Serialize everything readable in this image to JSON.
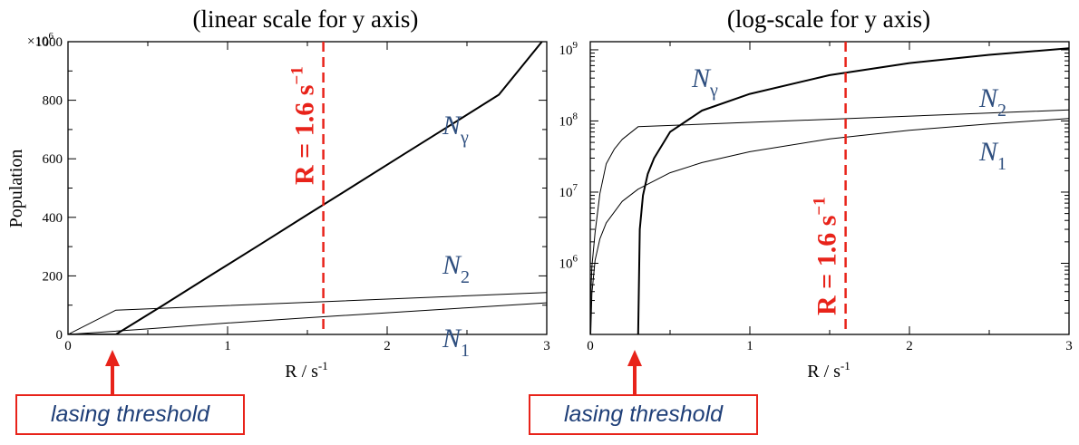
{
  "chart_data": [
    {
      "type": "line",
      "title": "(linear scale for y axis)",
      "xlabel": "R / s",
      "xlabel_sup": "-1",
      "ylabel": "Population",
      "y_multiplier": "×10",
      "y_multiplier_exp": "6",
      "yscale": "linear",
      "xlim": [
        0,
        3
      ],
      "ylim": [
        0,
        1000
      ],
      "xticks": [
        "0",
        "1",
        "2",
        "3"
      ],
      "yticks": [
        "0",
        "200",
        "400",
        "600",
        "800",
        "1000"
      ],
      "series": [
        {
          "name": "γ",
          "label_base": "N",
          "label_sub": "γ",
          "x": [
            0,
            0.3,
            0.6,
            0.9,
            1.2,
            1.5,
            1.8,
            2.1,
            2.4,
            2.7,
            2.97
          ],
          "values": [
            0,
            0,
            101,
            204,
            306,
            409,
            511,
            614,
            716,
            819,
            1000
          ]
        },
        {
          "name": "2",
          "label_base": "N",
          "label_sub": "2",
          "x": [
            0,
            0.3,
            3
          ],
          "values": [
            0,
            83,
            143
          ]
        },
        {
          "name": "1",
          "label_base": "N",
          "label_sub": "1",
          "x": [
            0,
            0.5,
            1,
            1.5,
            2,
            2.5,
            3
          ],
          "values": [
            0,
            19,
            39,
            57,
            74,
            91,
            108
          ]
        }
      ],
      "marker": {
        "x": 1.6,
        "text": "R = 1.6 s",
        "text_sup": "−1",
        "color": "#e8231a"
      }
    },
    {
      "type": "line",
      "title": "(log-scale for y axis)",
      "xlabel": "R / s",
      "xlabel_sup": "-1",
      "ylabel": "",
      "yscale": "log",
      "xlim": [
        0,
        3
      ],
      "ylim": [
        100000,
        1300000000
      ],
      "xticks": [
        "0",
        "1",
        "2",
        "3"
      ],
      "yticks": [
        {
          "base": "10",
          "exp": "6",
          "value": 1000000
        },
        {
          "base": "10",
          "exp": "7",
          "value": 10000000
        },
        {
          "base": "10",
          "exp": "8",
          "value": 100000000
        },
        {
          "base": "10",
          "exp": "9",
          "value": 1000000000
        }
      ],
      "series": [
        {
          "name": "γ",
          "label_base": "N",
          "label_sub": "γ",
          "x": [
            0.3,
            0.31,
            0.33,
            0.36,
            0.4,
            0.5,
            0.7,
            1.0,
            1.5,
            2.0,
            2.5,
            3.0
          ],
          "values": [
            100000,
            3000000,
            9000000,
            18000000,
            30000000,
            70000000,
            140000000,
            240000000,
            440000000,
            650000000,
            850000000,
            1050000000
          ]
        },
        {
          "name": "2",
          "label_base": "N",
          "label_sub": "2",
          "x": [
            0.001,
            0.005,
            0.01,
            0.03,
            0.06,
            0.1,
            0.15,
            0.2,
            0.3,
            3.0
          ],
          "values": [
            100000,
            450000,
            900000,
            2700000,
            9500000,
            25000000,
            40000000,
            55000000,
            83000000,
            143000000
          ]
        },
        {
          "name": "1",
          "label_base": "N",
          "label_sub": "1",
          "x": [
            0.003,
            0.01,
            0.03,
            0.06,
            0.1,
            0.2,
            0.3,
            0.5,
            0.7,
            1.0,
            1.5,
            2.0,
            2.5,
            3.0
          ],
          "values": [
            100000,
            380000,
            1100000,
            2200000,
            3700000,
            7400000,
            11000000,
            18700000,
            26000000,
            37000000,
            56000000,
            74000000,
            91000000,
            108000000
          ]
        }
      ],
      "marker": {
        "x": 1.6,
        "text": "R = 1.6 s",
        "text_sup": "−1",
        "color": "#e8231a"
      }
    }
  ],
  "annotations": [
    {
      "text": "lasing threshold",
      "color": "#e8231a"
    },
    {
      "text": "lasing threshold",
      "color": "#e8231a"
    }
  ]
}
